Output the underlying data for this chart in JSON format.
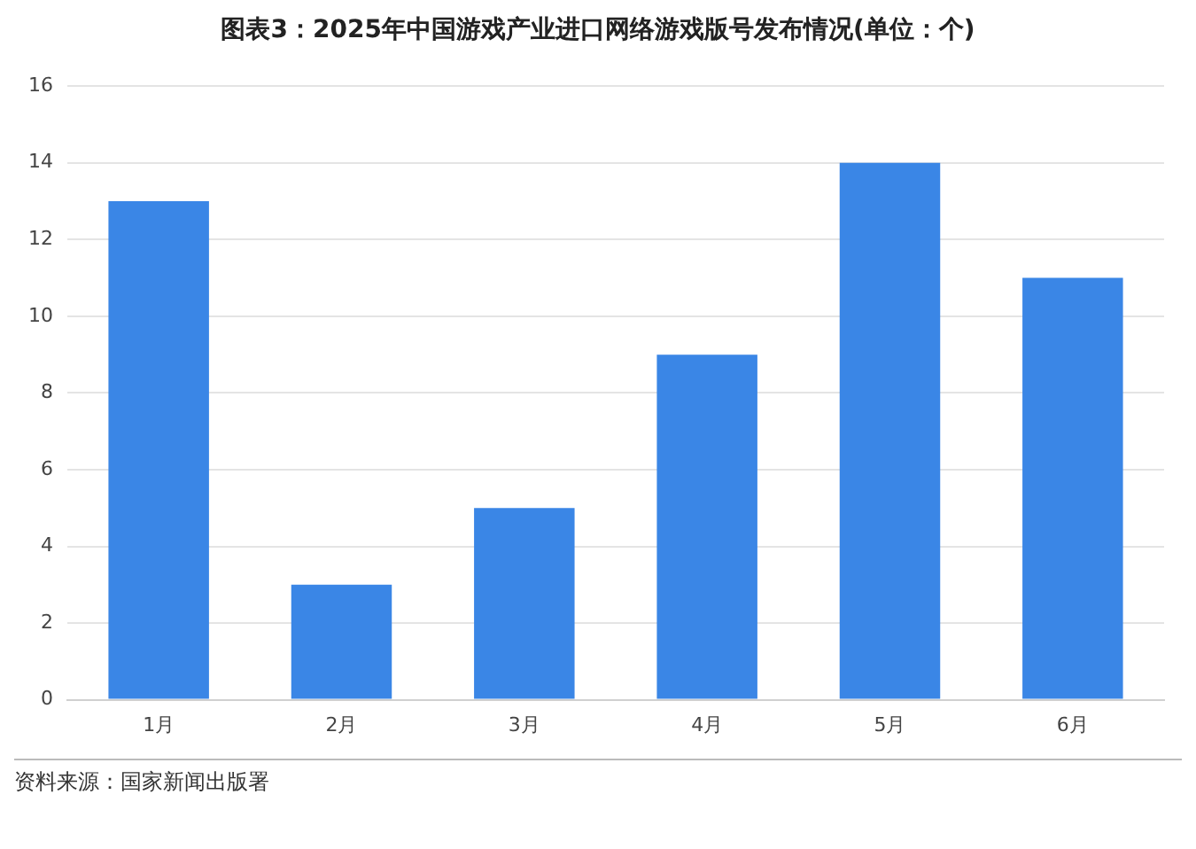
{
  "chart_data": {
    "type": "bar",
    "title": "图表3：2025年中国游戏产业进口网络游戏版号发布情况(单位：个)",
    "categories": [
      "1月",
      "2月",
      "3月",
      "4月",
      "5月",
      "6月"
    ],
    "values": [
      13,
      3,
      5,
      9,
      14,
      11
    ],
    "color": "#3a86e6",
    "ylim": [
      0,
      16
    ],
    "yticks": [
      0,
      2,
      4,
      6,
      8,
      10,
      12,
      14,
      16
    ],
    "grid": "y",
    "annotations": [
      "资料来源：国家新闻出版署"
    ]
  }
}
